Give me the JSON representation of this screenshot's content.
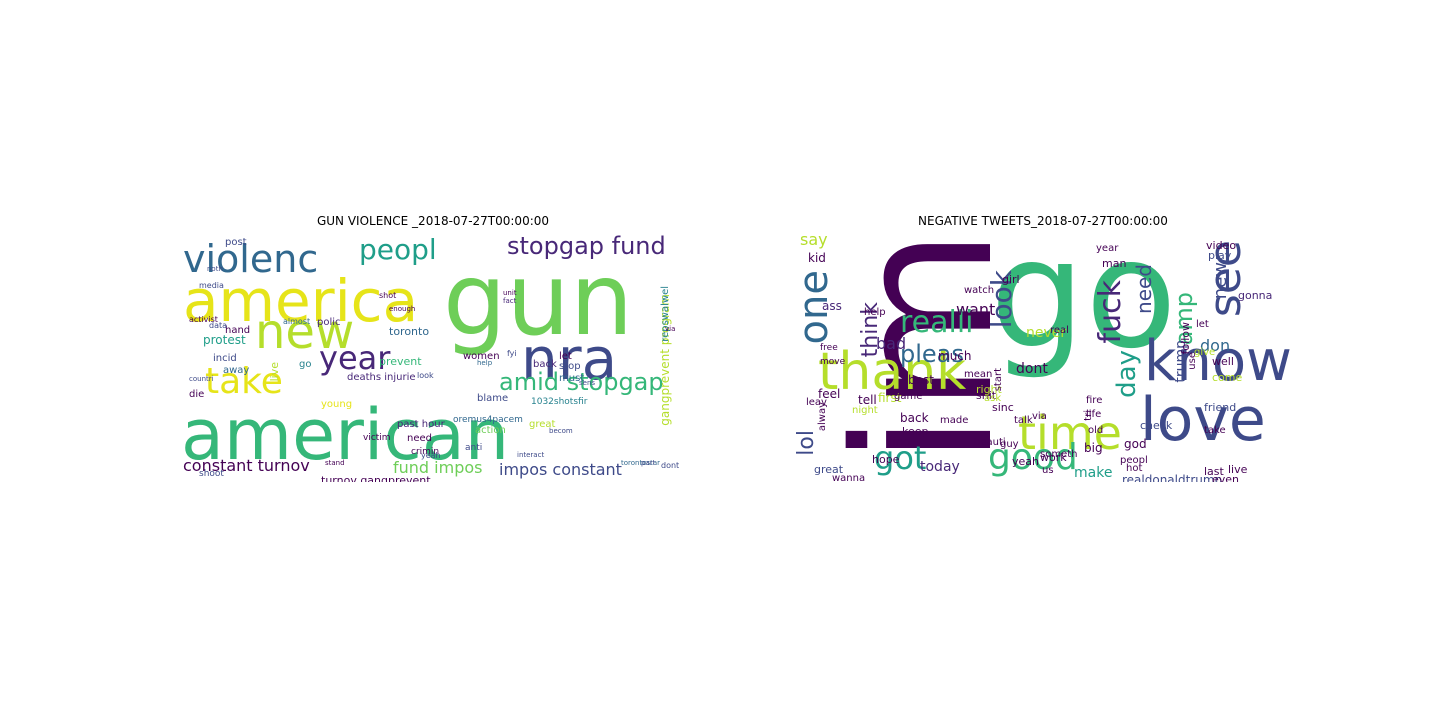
{
  "colors": {
    "dark_purple": "#440154",
    "purple": "#482878",
    "indigo": "#3e4a89",
    "blue": "#31688e",
    "teal": "#26828e",
    "green_teal": "#1f9e89",
    "green": "#35b779",
    "light_green": "#6ece58",
    "lime": "#b5de2b",
    "yellow": "#e6e419"
  },
  "panels": [
    {
      "title": "GUN VIOLENCE _2018-07-27T00:00:00",
      "words": [
        {
          "text": "american",
          "color": "#35b779"
        },
        {
          "text": "gun",
          "color": "#6ece58"
        },
        {
          "text": "america",
          "color": "#e6e419"
        },
        {
          "text": "new",
          "color": "#b5de2b"
        },
        {
          "text": "nra",
          "color": "#3e4a89"
        },
        {
          "text": "violenc",
          "color": "#31688e"
        },
        {
          "text": "take",
          "color": "#e6e419"
        },
        {
          "text": "year",
          "color": "#482878"
        },
        {
          "text": "peopl",
          "color": "#1f9e89"
        },
        {
          "text": "stopgap fund",
          "color": "#482878"
        },
        {
          "text": "amid stopgap",
          "color": "#35b779"
        },
        {
          "text": "constant turnov",
          "color": "#440154"
        },
        {
          "text": "fund impos",
          "color": "#6ece58"
        },
        {
          "text": "impos constant",
          "color": "#3e4a89"
        },
        {
          "text": "gangprevent program",
          "color": "#b5de2b"
        },
        {
          "text": "repswalwel",
          "color": "#26828e"
        },
        {
          "text": "turnov gangprevent",
          "color": "#440154"
        },
        {
          "text": "protest",
          "color": "#1f9e89"
        },
        {
          "text": "toronto",
          "color": "#31688e"
        },
        {
          "text": "prevent",
          "color": "#35b779"
        },
        {
          "text": "women",
          "color": "#440154"
        },
        {
          "text": "polic",
          "color": "#482878"
        },
        {
          "text": "post",
          "color": "#3e4a89"
        },
        {
          "text": "hand",
          "color": "#440154"
        },
        {
          "text": "deaths injurie",
          "color": "#482878"
        },
        {
          "text": "incid",
          "color": "#3e4a89"
        },
        {
          "text": "away",
          "color": "#31688e"
        },
        {
          "text": "die",
          "color": "#440154"
        },
        {
          "text": "live",
          "color": "#b5de2b"
        },
        {
          "text": "young",
          "color": "#e6e419"
        },
        {
          "text": "need",
          "color": "#440154"
        },
        {
          "text": "past hour",
          "color": "#482878"
        },
        {
          "text": "action",
          "color": "#6ece58"
        },
        {
          "text": "great",
          "color": "#b5de2b"
        },
        {
          "text": "blame",
          "color": "#3e4a89"
        },
        {
          "text": "back",
          "color": "#482878"
        },
        {
          "text": "let",
          "color": "#440154"
        },
        {
          "text": "stop",
          "color": "#3e4a89"
        },
        {
          "text": "must",
          "color": "#31688e"
        },
        {
          "text": "crimin",
          "color": "#440154"
        },
        {
          "text": "anti",
          "color": "#3e4a89"
        },
        {
          "text": "go",
          "color": "#26828e"
        },
        {
          "text": "victim",
          "color": "#440154"
        },
        {
          "text": "shoot",
          "color": "#3e4a89"
        },
        {
          "text": "1032shotsfir",
          "color": "#26828e"
        },
        {
          "text": "oremus4pacem",
          "color": "#31688e"
        },
        {
          "text": "fact",
          "color": "#482878"
        },
        {
          "text": "look",
          "color": "#3e4a89"
        },
        {
          "text": "almost",
          "color": "#31688e"
        },
        {
          "text": "shot",
          "color": "#440154"
        },
        {
          "text": "data",
          "color": "#3e4a89"
        },
        {
          "text": "activist",
          "color": "#440154"
        },
        {
          "text": "dont",
          "color": "#3e4a89"
        },
        {
          "text": "help",
          "color": "#31688e"
        },
        {
          "text": "yeah",
          "color": "#3e4a89"
        },
        {
          "text": "interact",
          "color": "#3e4a89"
        },
        {
          "text": "torontostar",
          "color": "#31688e"
        },
        {
          "text": "part",
          "color": "#3e4a89"
        },
        {
          "text": "stand",
          "color": "#440154"
        },
        {
          "text": "media",
          "color": "#3e4a89"
        },
        {
          "text": "unit",
          "color": "#440154"
        },
        {
          "text": "countri",
          "color": "#3e4a89"
        },
        {
          "text": "becom",
          "color": "#3e4a89"
        },
        {
          "text": "sens",
          "color": "#3e4a89"
        },
        {
          "text": "fyi",
          "color": "#3e4a89"
        },
        {
          "text": "enough",
          "color": "#440154"
        },
        {
          "text": "noth",
          "color": "#3e4a89"
        },
        {
          "text": "via",
          "color": "#440154"
        }
      ]
    },
    {
      "title": "NEGATIVE TWEETS_2018-07-27T00:00:00",
      "words": [
        {
          "text": "go",
          "color": "#35b779"
        },
        {
          "text": "im",
          "color": "#440154"
        },
        {
          "text": "love",
          "color": "#3e4a89"
        },
        {
          "text": "know",
          "color": "#3e4a89"
        },
        {
          "text": "thank",
          "color": "#b5de2b"
        },
        {
          "text": "one",
          "color": "#31688e"
        },
        {
          "text": "time",
          "color": "#b5de2b"
        },
        {
          "text": "good",
          "color": "#35b779"
        },
        {
          "text": "see",
          "color": "#3e4a89"
        },
        {
          "text": "got",
          "color": "#1f9e89"
        },
        {
          "text": "realli",
          "color": "#35b779"
        },
        {
          "text": "fuck",
          "color": "#482878"
        },
        {
          "text": "look",
          "color": "#3e4a89"
        },
        {
          "text": "amp",
          "color": "#35b779"
        },
        {
          "text": "day",
          "color": "#1f9e89"
        },
        {
          "text": "pleas",
          "color": "#31688e"
        },
        {
          "text": "think",
          "color": "#482878"
        },
        {
          "text": "lol",
          "color": "#3e4a89"
        },
        {
          "text": "need",
          "color": "#3e4a89"
        },
        {
          "text": "new",
          "color": "#3e4a89"
        },
        {
          "text": "say",
          "color": "#b5de2b"
        },
        {
          "text": "bad",
          "color": "#482878"
        },
        {
          "text": "want",
          "color": "#440154"
        },
        {
          "text": "never",
          "color": "#b5de2b"
        },
        {
          "text": "dont",
          "color": "#440154"
        },
        {
          "text": "don",
          "color": "#31688e"
        },
        {
          "text": "trump",
          "color": "#3e4a89"
        },
        {
          "text": "today",
          "color": "#482878"
        },
        {
          "text": "make",
          "color": "#1f9e89"
        },
        {
          "text": "realdonaldtrump",
          "color": "#3e4a89"
        },
        {
          "text": "kid",
          "color": "#440154"
        },
        {
          "text": "ass",
          "color": "#482878"
        },
        {
          "text": "help",
          "color": "#440154"
        },
        {
          "text": "much",
          "color": "#440154"
        },
        {
          "text": "best",
          "color": "#440154"
        },
        {
          "text": "feel",
          "color": "#440154"
        },
        {
          "text": "tell",
          "color": "#440154"
        },
        {
          "text": "first",
          "color": "#b5de2b"
        },
        {
          "text": "keep",
          "color": "#440154"
        },
        {
          "text": "back",
          "color": "#440154"
        },
        {
          "text": "find",
          "color": "#440154"
        },
        {
          "text": "hope",
          "color": "#440154"
        },
        {
          "text": "great",
          "color": "#3e4a89"
        },
        {
          "text": "work",
          "color": "#440154"
        },
        {
          "text": "yeah",
          "color": "#440154"
        },
        {
          "text": "shit",
          "color": "#440154"
        },
        {
          "text": "sinc",
          "color": "#440154"
        },
        {
          "text": "god",
          "color": "#440154"
        },
        {
          "text": "big",
          "color": "#440154"
        },
        {
          "text": "friend",
          "color": "#3e4a89"
        },
        {
          "text": "video",
          "color": "#440154"
        },
        {
          "text": "play",
          "color": "#3e4a89"
        },
        {
          "text": "gonna",
          "color": "#482878"
        },
        {
          "text": "man",
          "color": "#440154"
        },
        {
          "text": "girl",
          "color": "#440154"
        },
        {
          "text": "year",
          "color": "#440154"
        },
        {
          "text": "watch",
          "color": "#440154"
        },
        {
          "text": "right",
          "color": "#b5de2b"
        },
        {
          "text": "check",
          "color": "#3e4a89"
        },
        {
          "text": "take",
          "color": "#440154"
        },
        {
          "text": "well",
          "color": "#440154"
        },
        {
          "text": "come",
          "color": "#b5de2b"
        },
        {
          "text": "live",
          "color": "#440154"
        },
        {
          "text": "even",
          "color": "#440154"
        },
        {
          "text": "last",
          "color": "#440154"
        },
        {
          "text": "hot",
          "color": "#440154"
        },
        {
          "text": "via",
          "color": "#440154"
        },
        {
          "text": "us",
          "color": "#440154"
        },
        {
          "text": "talk",
          "color": "#440154"
        },
        {
          "text": "peopl",
          "color": "#440154"
        },
        {
          "text": "move",
          "color": "#440154"
        },
        {
          "text": "free",
          "color": "#440154"
        },
        {
          "text": "alway",
          "color": "#440154"
        },
        {
          "text": "leav",
          "color": "#440154"
        },
        {
          "text": "ask",
          "color": "#b5de2b"
        },
        {
          "text": "follow",
          "color": "#440154"
        },
        {
          "text": "give",
          "color": "#b5de2b"
        },
        {
          "text": "use",
          "color": "#440154"
        },
        {
          "text": "let",
          "color": "#440154"
        },
        {
          "text": "someth",
          "color": "#440154"
        },
        {
          "text": "made",
          "color": "#440154"
        },
        {
          "text": "game",
          "color": "#440154"
        },
        {
          "text": "mean",
          "color": "#440154"
        },
        {
          "text": "night",
          "color": "#b5de2b"
        },
        {
          "text": "start",
          "color": "#440154"
        },
        {
          "text": "real",
          "color": "#440154"
        },
        {
          "text": "guy",
          "color": "#440154"
        },
        {
          "text": "wanna",
          "color": "#440154"
        },
        {
          "text": "tri",
          "color": "#440154"
        },
        {
          "text": "fire",
          "color": "#440154"
        },
        {
          "text": "old",
          "color": "#440154"
        },
        {
          "text": "life",
          "color": "#440154"
        },
        {
          "text": "beauti",
          "color": "#440154"
        }
      ]
    }
  ]
}
